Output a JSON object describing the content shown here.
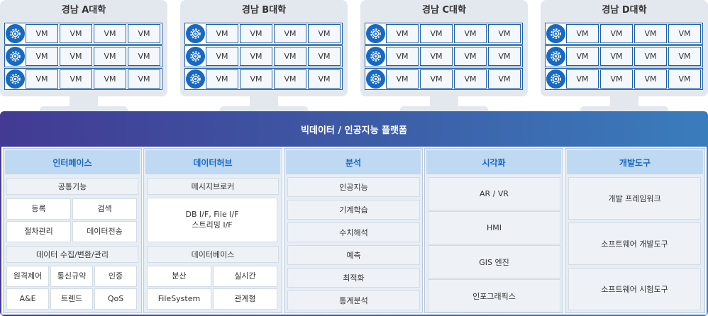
{
  "universities": [
    {
      "title": "경남 A대학",
      "rows": [
        [
          "VM",
          "VM",
          "VM",
          "VM"
        ],
        [
          "VM",
          "VM",
          "VM",
          "VM"
        ],
        [
          "VM",
          "VM",
          "VM",
          "VM"
        ]
      ]
    },
    {
      "title": "경남 B대학",
      "rows": [
        [
          "VM",
          "VM",
          "VM",
          "VM"
        ],
        [
          "VM",
          "VM",
          "VM",
          "VM"
        ],
        [
          "VM",
          "VM",
          "VM",
          "VM"
        ]
      ]
    },
    {
      "title": "경남 C대학",
      "rows": [
        [
          "VM",
          "VM",
          "VM",
          "VM"
        ],
        [
          "VM",
          "VM",
          "VM",
          "VM"
        ],
        [
          "VM",
          "VM",
          "VM",
          "VM"
        ]
      ]
    },
    {
      "title": "경남 D대학",
      "rows": [
        [
          "VM",
          "VM",
          "VM",
          "VM"
        ],
        [
          "VM",
          "VM",
          "VM",
          "VM"
        ],
        [
          "VM",
          "VM",
          "VM",
          "VM"
        ]
      ]
    }
  ],
  "platform": {
    "title": "빅데이터 / 인공지능 플랫폼",
    "interface": {
      "title": "인터페이스",
      "common": {
        "title": "공통기능",
        "items": [
          "등록",
          "검색",
          "절차관리",
          "데이터전송"
        ]
      },
      "collect": {
        "title": "데이터 수집/변환/관리",
        "items": [
          "원격제어",
          "통신규약",
          "인증",
          "A&E",
          "트렌드",
          "QoS"
        ]
      }
    },
    "hub": {
      "title": "데이터허브",
      "broker": {
        "title": "메시지브로커",
        "line1": "DB I/F, File I/F",
        "line2": "스트리밍 I/F"
      },
      "db": {
        "title": "데이터베이스",
        "items": [
          "분산",
          "실시간",
          "FileSystem",
          "관계형"
        ]
      }
    },
    "analysis": {
      "title": "분석",
      "items": [
        "인공지능",
        "기계학습",
        "수치해석",
        "예측",
        "최적화",
        "통계분석"
      ]
    },
    "visual": {
      "title": "시각화",
      "items": [
        "AR / VR",
        "HMI",
        "GIS 엔진",
        "인포그래픽스"
      ]
    },
    "tools": {
      "title": "개발도구",
      "items": [
        "개발 프레임워크",
        "소프트웨어 개발도구",
        "소프트웨어 시험도구"
      ]
    }
  },
  "colors": {
    "accent": "#1769c1",
    "platform_start": "#423a93",
    "platform_end": "#3a7dbc",
    "header_bg": "#bfd9f2"
  },
  "icons": {
    "vm_group": "gear-icon"
  }
}
